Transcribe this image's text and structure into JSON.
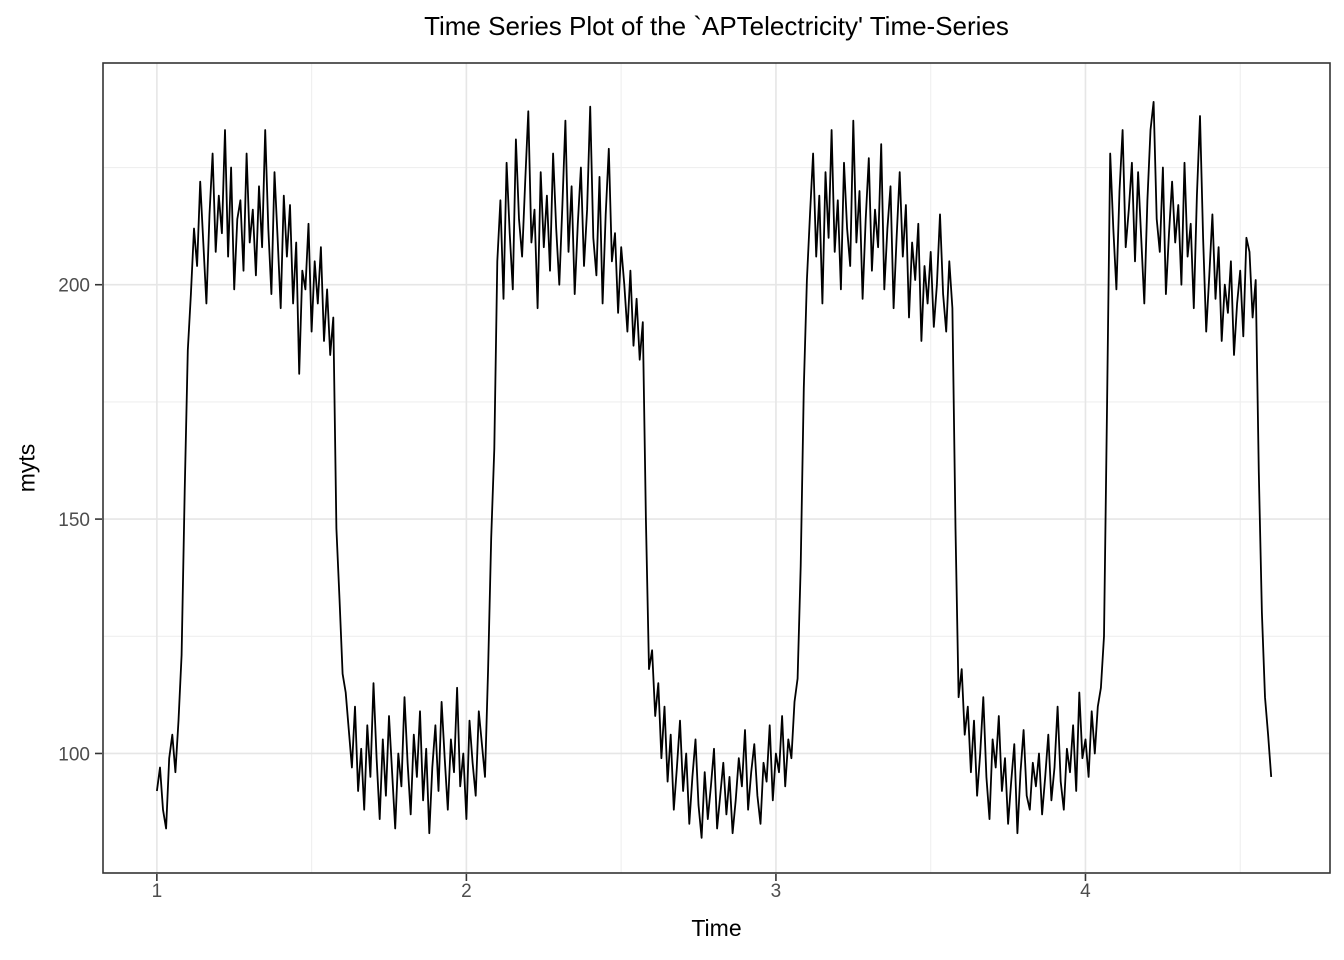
{
  "chart": {
    "title": "Time Series Plot of the `APTelectricity' Time-Series",
    "xlabel": "Time",
    "ylabel": "myts"
  },
  "chart_data": {
    "type": "line",
    "title": "Time Series Plot of the `APTelectricity' Time-Series",
    "xlabel": "Time",
    "ylabel": "myts",
    "series_name": "myts",
    "legend": false,
    "grid": true,
    "x_start": 1.0,
    "x_step": 0.01,
    "x_end": 4.6,
    "xlim": [
      0.826,
      4.79
    ],
    "ylim": [
      74.5,
      247.3
    ],
    "x_ticks": [
      1,
      2,
      3,
      4
    ],
    "x_minor_ticks": [
      1.5,
      2.5,
      3.5,
      4.5
    ],
    "y_ticks": [
      100,
      150,
      200
    ],
    "y_minor_ticks": [
      125,
      175,
      225
    ],
    "colors": {
      "line": "#000000",
      "grid_major": "#E6E6E6",
      "grid_minor": "#EFEFEF",
      "panel_border": "#343434",
      "tick_mark": "#343434",
      "tick_label": "#4D4D4D",
      "title": "#000000",
      "background": "#FFFFFF"
    },
    "values": [
      92,
      97,
      88,
      84,
      99,
      104,
      96,
      107,
      121,
      156,
      186,
      198,
      212,
      204,
      222,
      209,
      196,
      215,
      228,
      207,
      219,
      211,
      233,
      206,
      225,
      199,
      214,
      218,
      203,
      228,
      209,
      216,
      202,
      221,
      208,
      233,
      212,
      198,
      224,
      210,
      195,
      219,
      206,
      217,
      196,
      209,
      181,
      203,
      199,
      213,
      190,
      205,
      196,
      208,
      188,
      199,
      185,
      193,
      148,
      133,
      117,
      113,
      105,
      97,
      110,
      92,
      101,
      88,
      106,
      95,
      115,
      99,
      86,
      103,
      91,
      108,
      96,
      84,
      100,
      93,
      112,
      98,
      87,
      104,
      95,
      109,
      90,
      101,
      83,
      97,
      106,
      92,
      111,
      99,
      88,
      103,
      96,
      114,
      93,
      100,
      86,
      107,
      98,
      91,
      109,
      102,
      95,
      118,
      146,
      165,
      205,
      218,
      197,
      226,
      211,
      199,
      231,
      214,
      206,
      222,
      237,
      209,
      216,
      195,
      224,
      208,
      219,
      203,
      228,
      212,
      200,
      217,
      235,
      207,
      221,
      198,
      213,
      225,
      204,
      216,
      238,
      210,
      202,
      223,
      196,
      215,
      229,
      205,
      211,
      194,
      208,
      200,
      190,
      203,
      187,
      197,
      184,
      192,
      150,
      118,
      122,
      108,
      115,
      99,
      110,
      94,
      104,
      88,
      97,
      107,
      92,
      100,
      85,
      95,
      103,
      89,
      82,
      96,
      86,
      93,
      101,
      84,
      91,
      98,
      87,
      95,
      83,
      90,
      99,
      93,
      105,
      88,
      96,
      102,
      91,
      85,
      98,
      94,
      106,
      90,
      100,
      96,
      108,
      93,
      103,
      99,
      111,
      116,
      140,
      178,
      201,
      215,
      228,
      206,
      219,
      196,
      224,
      210,
      233,
      207,
      218,
      199,
      226,
      212,
      204,
      235,
      209,
      220,
      197,
      214,
      227,
      203,
      216,
      208,
      230,
      199,
      212,
      221,
      195,
      210,
      224,
      206,
      217,
      193,
      209,
      201,
      213,
      188,
      204,
      196,
      207,
      191,
      200,
      215,
      198,
      190,
      205,
      195,
      148,
      112,
      118,
      104,
      110,
      96,
      107,
      91,
      100,
      112,
      95,
      86,
      103,
      97,
      108,
      92,
      99,
      85,
      94,
      102,
      83,
      96,
      105,
      91,
      88,
      98,
      93,
      100,
      87,
      95,
      104,
      90,
      97,
      110,
      94,
      88,
      101,
      96,
      106,
      92,
      113,
      99,
      103,
      95,
      109,
      100,
      110,
      114,
      125,
      175,
      228,
      212,
      199,
      220,
      233,
      208,
      216,
      226,
      205,
      224,
      210,
      196,
      218,
      233,
      239,
      214,
      207,
      225,
      198,
      211,
      222,
      209,
      217,
      200,
      226,
      206,
      213,
      195,
      219,
      236,
      210,
      190,
      202,
      215,
      197,
      208,
      188,
      200,
      194,
      205,
      185,
      196,
      203,
      189,
      210,
      207,
      193,
      201,
      160,
      130,
      112,
      104,
      95
    ]
  }
}
